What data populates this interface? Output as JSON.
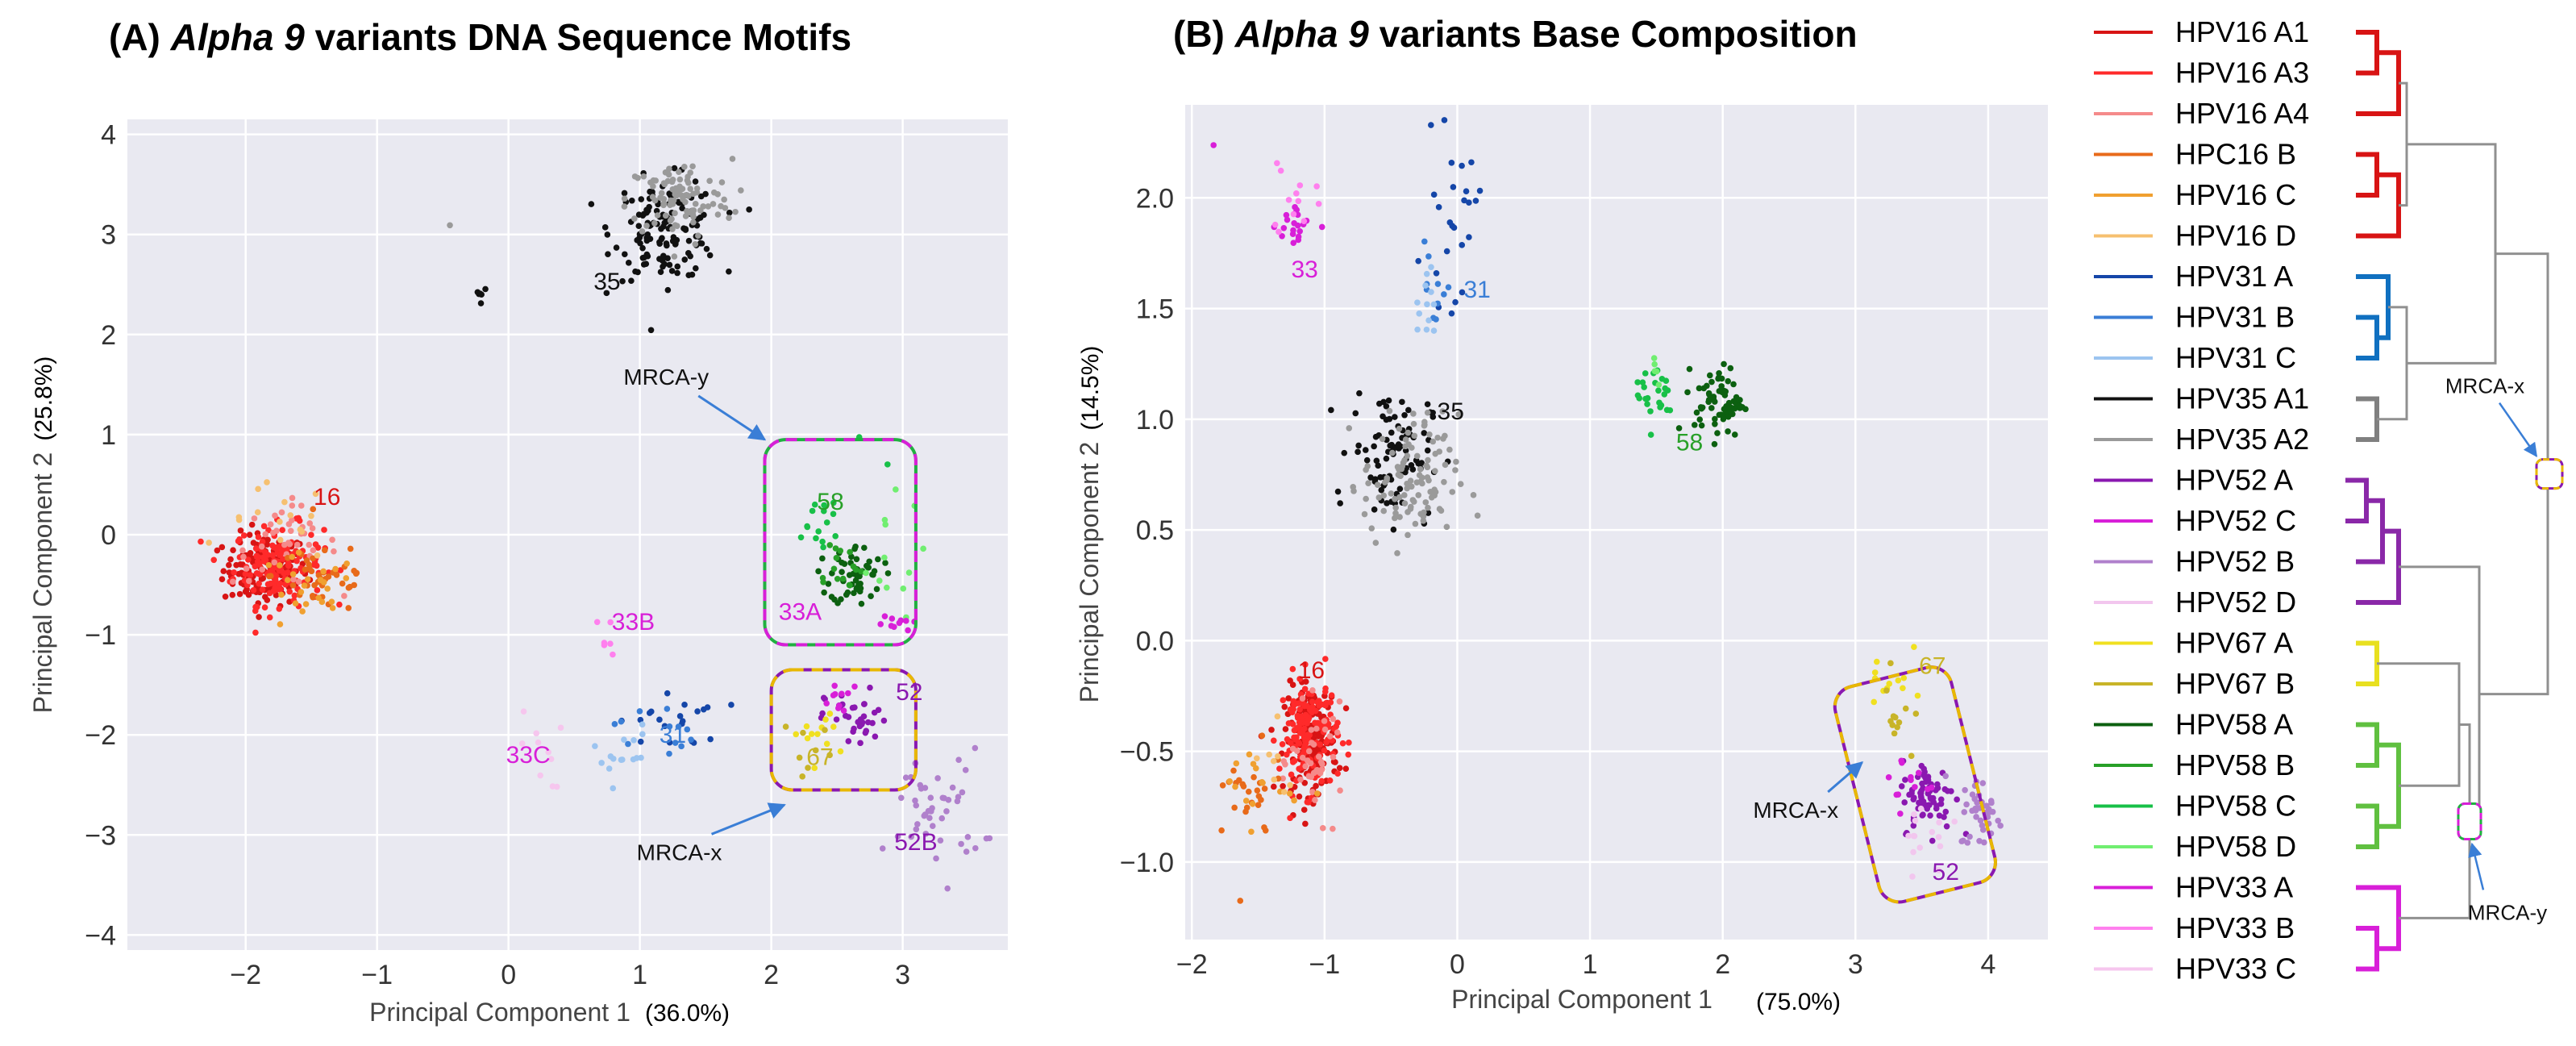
{
  "colors": {
    "HPV16 A1": "#d81414",
    "HPV16 A3": "#ff2a2a",
    "HPV16 A4": "#f58a8a",
    "HPC16 B": "#e86a1a",
    "HPV16 C": "#f0a030",
    "HPV16 D": "#f6c070",
    "HPV31 A": "#1546a8",
    "HPV31 B": "#3a7ed6",
    "HPV31 C": "#9cc4f0",
    "HPV35 A1": "#111111",
    "HPV35 A2": "#9a9a9a",
    "HPV52 A": "#8a18b0",
    "HPV52 C": "#d81fd8",
    "HPV52 B": "#b080cc",
    "HPV52 D": "#f2c6ee",
    "HPV67 A": "#f0e020",
    "HPV67 B": "#c8b428",
    "HPV58 A": "#0c6010",
    "HPV58 B": "#28a028",
    "HPV58 C": "#18c048",
    "HPV58 D": "#70ee70",
    "HPV33 A": "#d81fd8",
    "HPV33 B": "#ff80ee",
    "HPV33 C": "#f6c6ee",
    "grid": "#ffffff",
    "plot_bg": "#e9e9f1",
    "tree_gray": "#909090",
    "box_yellow": "#e8b800",
    "box_magenta": "#d81fd8",
    "arrow_blue": "#3a7ed6"
  },
  "chart_data": [
    {
      "type": "scatter",
      "title_prefix": "(A) ",
      "title_italic": "Alpha 9",
      "title_suffix": " variants DNA Sequence Motifs",
      "xlabel": "Principal Component 1",
      "xlabel_pct": "(36.0%)",
      "ylabel": "Principal Component 2",
      "ylabel_pct": "(25.8%)",
      "xlim": [
        -2.9,
        3.8
      ],
      "ylim": [
        -4.15,
        4.15
      ],
      "xticks": [
        -2,
        -1,
        0,
        1,
        2,
        3
      ],
      "xtick_labels": [
        "−2",
        "−1",
        "0",
        "1",
        "2",
        "3"
      ],
      "yticks": [
        -4,
        -3,
        -2,
        -1,
        0,
        1,
        2,
        3,
        4
      ],
      "ytick_labels": [
        "−4",
        "−3",
        "−2",
        "−1",
        "0",
        "1",
        "2",
        "3",
        "4"
      ],
      "grid": true,
      "clusters": [
        {
          "series": "HPV16 A1",
          "cx": -1.85,
          "cy": -0.35,
          "sx": 0.16,
          "sy": 0.18,
          "n": 150
        },
        {
          "series": "HPV16 A3",
          "cx": -1.75,
          "cy": -0.3,
          "sx": 0.17,
          "sy": 0.2,
          "n": 150
        },
        {
          "series": "HPV16 A4",
          "cx": -1.7,
          "cy": -0.1,
          "sx": 0.2,
          "sy": 0.2,
          "n": 40
        },
        {
          "series": "HPC16 B",
          "cx": -1.4,
          "cy": -0.4,
          "sx": 0.2,
          "sy": 0.2,
          "n": 40
        },
        {
          "series": "HPV16 C",
          "cx": -1.55,
          "cy": -0.6,
          "sx": 0.2,
          "sy": 0.2,
          "n": 25
        },
        {
          "series": "HPV16 D",
          "cx": -1.75,
          "cy": 0.1,
          "sx": 0.2,
          "sy": 0.2,
          "n": 15
        },
        {
          "series": "HPV35 A1",
          "cx": 1.2,
          "cy": 3.05,
          "sx": 0.2,
          "sy": 0.25,
          "n": 140
        },
        {
          "series": "HPV35 A2",
          "cx": 1.3,
          "cy": 3.35,
          "sx": 0.2,
          "sy": 0.2,
          "n": 100
        },
        {
          "series": "HPV35 A1",
          "cx": -0.22,
          "cy": 2.4,
          "sx": 0.03,
          "sy": 0.07,
          "n": 6
        },
        {
          "series": "HPV35 A2",
          "cx": -0.45,
          "cy": 3.1,
          "sx": 0.01,
          "sy": 0.01,
          "n": 1
        },
        {
          "series": "HPV58 A",
          "cx": 2.65,
          "cy": -0.4,
          "sx": 0.1,
          "sy": 0.15,
          "n": 55
        },
        {
          "series": "HPV58 B",
          "cx": 2.5,
          "cy": -0.3,
          "sx": 0.1,
          "sy": 0.15,
          "n": 15
        },
        {
          "series": "HPV58 C",
          "cx": 2.35,
          "cy": 0.1,
          "sx": 0.12,
          "sy": 0.2,
          "n": 15
        },
        {
          "series": "HPV58 D",
          "cx": 2.85,
          "cy": -0.25,
          "sx": 0.15,
          "sy": 0.3,
          "n": 12
        },
        {
          "series": "HPV58 C",
          "cx": 2.75,
          "cy": 0.8,
          "sx": 0.1,
          "sy": 0.1,
          "n": 2
        },
        {
          "series": "HPV33 A",
          "cx": 2.9,
          "cy": -0.9,
          "sx": 0.08,
          "sy": 0.08,
          "n": 10
        },
        {
          "series": "HPV33 B",
          "cx": 0.75,
          "cy": -1.1,
          "sx": 0.06,
          "sy": 0.15,
          "n": 6
        },
        {
          "series": "HPV33 C",
          "cx": 0.25,
          "cy": -2.15,
          "sx": 0.08,
          "sy": 0.2,
          "n": 10
        },
        {
          "series": "HPV31 A",
          "cx": 1.25,
          "cy": -1.85,
          "sx": 0.2,
          "sy": 0.15,
          "n": 20
        },
        {
          "series": "HPV31 B",
          "cx": 1.1,
          "cy": -1.95,
          "sx": 0.15,
          "sy": 0.15,
          "n": 12
        },
        {
          "series": "HPV31 C",
          "cx": 0.85,
          "cy": -2.2,
          "sx": 0.12,
          "sy": 0.15,
          "n": 15
        },
        {
          "series": "HPV52 A",
          "cx": 2.65,
          "cy": -1.85,
          "sx": 0.12,
          "sy": 0.15,
          "n": 35
        },
        {
          "series": "HPV52 C",
          "cx": 2.55,
          "cy": -1.7,
          "sx": 0.1,
          "sy": 0.1,
          "n": 10
        },
        {
          "series": "HPV52 B",
          "cx": 3.25,
          "cy": -2.75,
          "sx": 0.18,
          "sy": 0.3,
          "n": 45
        },
        {
          "series": "HPV67 A",
          "cx": 2.4,
          "cy": -2.0,
          "sx": 0.12,
          "sy": 0.15,
          "n": 12
        },
        {
          "series": "HPV67 B",
          "cx": 2.3,
          "cy": -2.1,
          "sx": 0.1,
          "sy": 0.15,
          "n": 8
        }
      ],
      "cluster_labels": [
        {
          "text": "16",
          "x": -1.38,
          "y": 0.3,
          "series": "HPV16 A1"
        },
        {
          "text": "35",
          "x": 0.75,
          "y": 2.45,
          "series": "HPV35 A1"
        },
        {
          "text": "58",
          "x": 2.45,
          "y": 0.25,
          "series": "HPV58 B"
        },
        {
          "text": "33A",
          "x": 2.22,
          "y": -0.85,
          "series": "HPV33 A"
        },
        {
          "text": "33B",
          "x": 0.95,
          "y": -0.95,
          "series": "HPV33 A"
        },
        {
          "text": "33C",
          "x": 0.15,
          "y": -2.28,
          "series": "HPV33 A"
        },
        {
          "text": "31",
          "x": 1.25,
          "y": -2.08,
          "series": "HPV31 B"
        },
        {
          "text": "52",
          "x": 3.05,
          "y": -1.65,
          "series": "HPV52 A"
        },
        {
          "text": "67",
          "x": 2.37,
          "y": -2.3,
          "series": "HPV67 B"
        },
        {
          "text": "52B",
          "x": 3.1,
          "y": -3.15,
          "series": "HPV52 A"
        }
      ],
      "annotations": [
        {
          "text": "MRCA-y",
          "tx": 1.2,
          "ty": 1.5,
          "ax": 1.95,
          "ay": 0.95
        },
        {
          "text": "MRCA-x",
          "tx": 1.3,
          "ty": -3.25,
          "ax": 2.1,
          "ay": -2.7
        }
      ],
      "boxes": [
        {
          "name": "MRCA-y",
          "x0": 1.95,
          "x1": 3.1,
          "y0": -1.1,
          "y1": 0.95,
          "style": "magenta-green"
        },
        {
          "name": "MRCA-x",
          "x0": 2.0,
          "x1": 3.1,
          "y0": -2.55,
          "y1": -1.35,
          "style": "yellow-purple"
        }
      ]
    },
    {
      "type": "scatter",
      "title_prefix": "(B) ",
      "title_italic": "Alpha 9",
      "title_suffix": " variants Base Composition",
      "xlabel": "Principal Component 1",
      "xlabel_pct": "(75.0%)",
      "ylabel": "Principal Component 2",
      "ylabel_pct": "(14.5%)",
      "xlim": [
        -2.05,
        4.45
      ],
      "ylim": [
        -1.35,
        2.42
      ],
      "xticks": [
        -2,
        -1,
        0,
        1,
        2,
        3,
        4
      ],
      "xtick_labels": [
        "−2",
        "−1",
        "0",
        "1",
        "2",
        "3",
        "4"
      ],
      "yticks": [
        -1.0,
        -0.5,
        0.0,
        0.5,
        1.0,
        1.5,
        2.0
      ],
      "ytick_labels": [
        "−1.0",
        "−0.5",
        "0.0",
        "0.5",
        "1.0",
        "1.5",
        "2.0"
      ],
      "grid": true,
      "clusters": [
        {
          "series": "HPV16 A1",
          "cx": -1.1,
          "cy": -0.45,
          "sx": 0.1,
          "sy": 0.12,
          "n": 160
        },
        {
          "series": "HPV16 A3",
          "cx": -1.12,
          "cy": -0.42,
          "sx": 0.11,
          "sy": 0.13,
          "n": 140
        },
        {
          "series": "HPV16 A4",
          "cx": -1.05,
          "cy": -0.55,
          "sx": 0.1,
          "sy": 0.12,
          "n": 40
        },
        {
          "series": "HPC16 B",
          "cx": -1.6,
          "cy": -0.72,
          "sx": 0.15,
          "sy": 0.1,
          "n": 25
        },
        {
          "series": "HPV16 C",
          "cx": -1.5,
          "cy": -0.65,
          "sx": 0.15,
          "sy": 0.1,
          "n": 15
        },
        {
          "series": "HPV16 D",
          "cx": -1.4,
          "cy": -0.6,
          "sx": 0.15,
          "sy": 0.1,
          "n": 8
        },
        {
          "series": "HPC16 B",
          "cx": -1.65,
          "cy": -1.18,
          "sx": 0.01,
          "sy": 0.01,
          "n": 1
        },
        {
          "series": "HPV33 A",
          "cx": -1.2,
          "cy": 1.88,
          "sx": 0.08,
          "sy": 0.06,
          "n": 20
        },
        {
          "series": "HPV33 B",
          "cx": -1.25,
          "cy": 1.97,
          "sx": 0.1,
          "sy": 0.1,
          "n": 12
        },
        {
          "series": "HPV33 A",
          "cx": -1.85,
          "cy": 2.25,
          "sx": 0.01,
          "sy": 0.01,
          "n": 1
        },
        {
          "series": "HPV31 A",
          "cx": -0.05,
          "cy": 1.88,
          "sx": 0.1,
          "sy": 0.18,
          "n": 25
        },
        {
          "series": "HPV31 B",
          "cx": -0.15,
          "cy": 1.6,
          "sx": 0.08,
          "sy": 0.12,
          "n": 10
        },
        {
          "series": "HPV31 C",
          "cx": -0.22,
          "cy": 1.55,
          "sx": 0.06,
          "sy": 0.1,
          "n": 12
        },
        {
          "series": "HPV35 A1",
          "cx": -0.5,
          "cy": 0.85,
          "sx": 0.15,
          "sy": 0.15,
          "n": 90
        },
        {
          "series": "HPV35 A2",
          "cx": -0.35,
          "cy": 0.72,
          "sx": 0.18,
          "sy": 0.15,
          "n": 110
        },
        {
          "series": "HPV58 A",
          "cx": 1.97,
          "cy": 1.08,
          "sx": 0.09,
          "sy": 0.08,
          "n": 70
        },
        {
          "series": "HPV58 C",
          "cx": 1.5,
          "cy": 1.12,
          "sx": 0.08,
          "sy": 0.08,
          "n": 25
        },
        {
          "series": "HPV58 D",
          "cx": 1.45,
          "cy": 1.25,
          "sx": 0.06,
          "sy": 0.05,
          "n": 5
        },
        {
          "series": "HPV52 A",
          "cx": 3.55,
          "cy": -0.7,
          "sx": 0.1,
          "sy": 0.08,
          "n": 70
        },
        {
          "series": "HPV52 B",
          "cx": 3.95,
          "cy": -0.78,
          "sx": 0.08,
          "sy": 0.08,
          "n": 40
        },
        {
          "series": "HPV52 C",
          "cx": 3.4,
          "cy": -0.65,
          "sx": 0.1,
          "sy": 0.08,
          "n": 12
        },
        {
          "series": "HPV52 D",
          "cx": 3.55,
          "cy": -0.85,
          "sx": 0.12,
          "sy": 0.1,
          "n": 15
        },
        {
          "series": "HPV67 A",
          "cx": 3.25,
          "cy": -0.15,
          "sx": 0.08,
          "sy": 0.12,
          "n": 12
        },
        {
          "series": "HPV67 B",
          "cx": 3.3,
          "cy": -0.35,
          "sx": 0.07,
          "sy": 0.1,
          "n": 12
        }
      ],
      "cluster_labels": [
        {
          "text": "33",
          "x": -1.15,
          "y": 1.64,
          "series": "HPV33 A"
        },
        {
          "text": "31",
          "x": 0.15,
          "y": 1.55,
          "series": "HPV31 B"
        },
        {
          "text": "35",
          "x": -0.05,
          "y": 1.0,
          "series": "HPV35 A1"
        },
        {
          "text": "58",
          "x": 1.75,
          "y": 0.86,
          "series": "HPV58 B"
        },
        {
          "text": "16",
          "x": -1.1,
          "y": -0.17,
          "series": "HPV16 A1"
        },
        {
          "text": "67",
          "x": 3.58,
          "y": -0.15,
          "series": "HPV67 B"
        },
        {
          "text": "52",
          "x": 3.68,
          "y": -1.08,
          "series": "HPV52 A"
        }
      ],
      "annotations": [
        {
          "text": "MRCA-x",
          "tx": 2.55,
          "ty": -0.8,
          "ax": 3.05,
          "ay": -0.55
        }
      ],
      "boxes": [
        {
          "name": "MRCA-x",
          "x0": 3.0,
          "x1": 3.9,
          "y0": -1.15,
          "y1": -0.15,
          "style": "yellow-purple",
          "rotate": -14
        }
      ]
    }
  ],
  "legend": {
    "entries": [
      "HPV16 A1",
      "HPV16 A3",
      "HPV16 A4",
      "HPC16 B",
      "HPV16 C",
      "HPV16 D",
      "HPV31 A",
      "HPV31 B",
      "HPV31 C",
      "HPV35 A1",
      "HPV35 A2",
      "HPV52 A",
      "HPV52 C",
      "HPV52 B",
      "HPV52 D",
      "HPV67 A",
      "HPV67 B",
      "HPV58 A",
      "HPV58 B",
      "HPV58 C",
      "HPV58 D",
      "HPV33 A",
      "HPV33 B",
      "HPV33 C"
    ],
    "tree_labels": [
      "MRCA-x",
      "MRCA-y"
    ]
  }
}
